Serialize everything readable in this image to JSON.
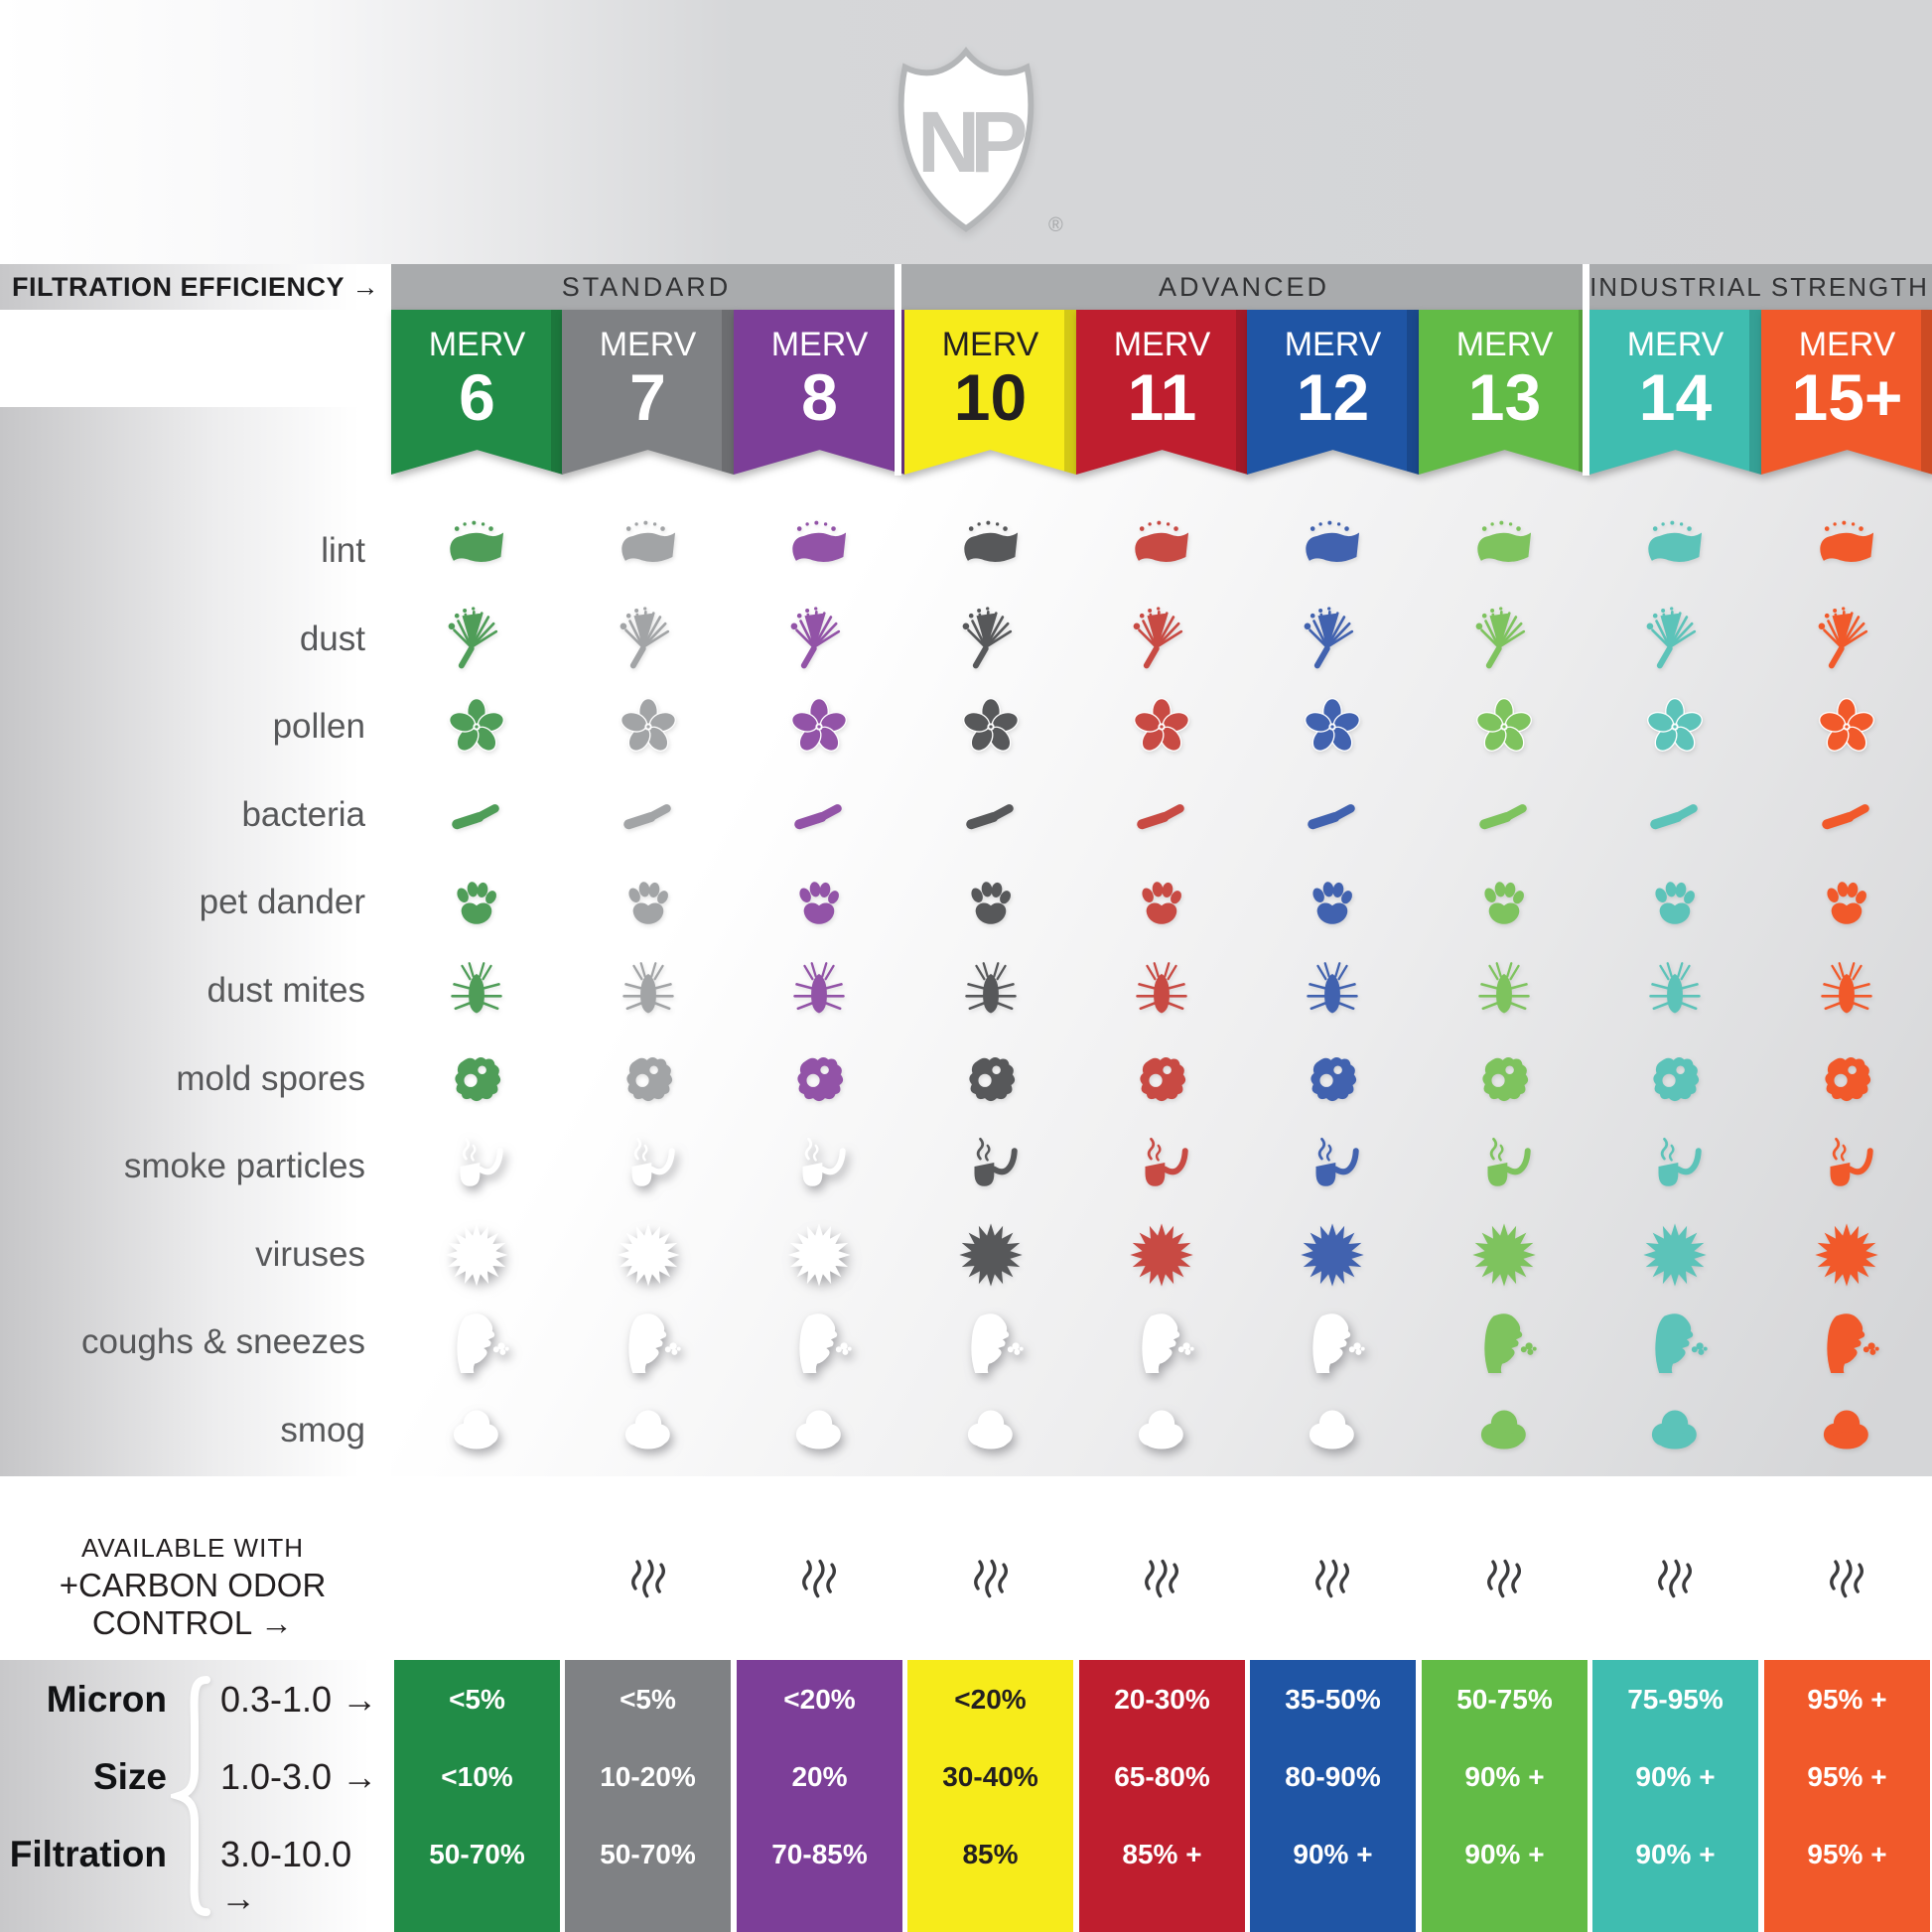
{
  "logo": {
    "letters": "NP",
    "registered_mark": "®"
  },
  "header": {
    "efficiency_label": "FILTRATION EFFICIENCY →",
    "groups": [
      {
        "label": "STANDARD"
      },
      {
        "label": "ADVANCED"
      },
      {
        "label": "INDUSTRIAL STRENGTH"
      }
    ]
  },
  "columns": [
    {
      "merv_word": "MERV",
      "number": "6",
      "group": "STANDARD",
      "ribbon_color": "#218c47",
      "icon_color": "#4f9d58",
      "ribbon_text_color": "#ffffff",
      "carbon_odor_control": false,
      "table_values": [
        "<5%",
        "<10%",
        "50-70%"
      ],
      "table_text_color": "#ffffff"
    },
    {
      "merv_word": "MERV",
      "number": "7",
      "group": "STANDARD",
      "ribbon_color": "#7f8184",
      "icon_color": "#a2a4a6",
      "ribbon_text_color": "#ffffff",
      "carbon_odor_control": true,
      "table_values": [
        "<5%",
        "10-20%",
        "50-70%"
      ],
      "table_text_color": "#ffffff"
    },
    {
      "merv_word": "MERV",
      "number": "8",
      "group": "STANDARD",
      "ribbon_color": "#7c3e98",
      "icon_color": "#9253a7",
      "ribbon_text_color": "#ffffff",
      "carbon_odor_control": true,
      "table_values": [
        "<20%",
        "20%",
        "70-85%"
      ],
      "table_text_color": "#ffffff"
    },
    {
      "merv_word": "MERV",
      "number": "10",
      "group": "ADVANCED",
      "ribbon_color": "#f7ec1a",
      "icon_color": "#57585a",
      "ribbon_text_color": "#231f20",
      "carbon_odor_control": true,
      "table_values": [
        "<20%",
        "30-40%",
        "85%"
      ],
      "table_text_color": "#231f20"
    },
    {
      "merv_word": "MERV",
      "number": "11",
      "group": "ADVANCED",
      "ribbon_color": "#bf1e2e",
      "icon_color": "#c84a43",
      "ribbon_text_color": "#ffffff",
      "carbon_odor_control": true,
      "table_values": [
        "20-30%",
        "65-80%",
        "85% +"
      ],
      "table_text_color": "#ffffff"
    },
    {
      "merv_word": "MERV",
      "number": "12",
      "group": "ADVANCED",
      "ribbon_color": "#1f55a5",
      "icon_color": "#4162af",
      "ribbon_text_color": "#ffffff",
      "carbon_odor_control": true,
      "table_values": [
        "35-50%",
        "80-90%",
        "90% +"
      ],
      "table_text_color": "#ffffff"
    },
    {
      "merv_word": "MERV",
      "number": "13",
      "group": "ADVANCED",
      "ribbon_color": "#62bb46",
      "icon_color": "#7ec35e",
      "ribbon_text_color": "#ffffff",
      "carbon_odor_control": true,
      "table_values": [
        "50-75%",
        "90% +",
        "90% +"
      ],
      "table_text_color": "#ffffff"
    },
    {
      "merv_word": "MERV",
      "number": "14",
      "group": "INDUSTRIAL STRENGTH",
      "ribbon_color": "#3fbdb0",
      "icon_color": "#5cc3b9",
      "ribbon_text_color": "#ffffff",
      "carbon_odor_control": true,
      "table_values": [
        "75-95%",
        "90% +",
        "90% +"
      ],
      "table_text_color": "#ffffff"
    },
    {
      "merv_word": "MERV",
      "number": "15+",
      "group": "INDUSTRIAL STRENGTH",
      "ribbon_color": "#f1592a",
      "icon_color": "#f1592a",
      "ribbon_text_color": "#ffffff",
      "carbon_odor_control": true,
      "table_values": [
        "95% +",
        "95% +",
        "95% +"
      ],
      "table_text_color": "#ffffff"
    }
  ],
  "rows": [
    {
      "label": "lint",
      "icon": "lint-icon",
      "colored_from_column": 0
    },
    {
      "label": "dust",
      "icon": "dust-icon",
      "colored_from_column": 0
    },
    {
      "label": "pollen",
      "icon": "pollen-icon",
      "colored_from_column": 0
    },
    {
      "label": "bacteria",
      "icon": "bacteria-icon",
      "colored_from_column": 0
    },
    {
      "label": "pet dander",
      "icon": "paw-icon",
      "colored_from_column": 0
    },
    {
      "label": "dust mites",
      "icon": "dust-mite-icon",
      "colored_from_column": 0
    },
    {
      "label": "mold spores",
      "icon": "mold-spores-icon",
      "colored_from_column": 0
    },
    {
      "label": "smoke particles",
      "icon": "pipe-icon",
      "colored_from_column": 3
    },
    {
      "label": "viruses",
      "icon": "virus-icon",
      "colored_from_column": 3
    },
    {
      "label": "coughs & sneezes",
      "icon": "cough-icon",
      "colored_from_column": 6
    },
    {
      "label": "smog",
      "icon": "smog-cloud-icon",
      "colored_from_column": 6
    }
  ],
  "carbon_row": {
    "line1": "AVAILABLE WITH",
    "line2": "+CARBON ODOR CONTROL →",
    "steam_icon": "steam-icon",
    "inactive_icon_color": "#ffffff"
  },
  "micron_table": {
    "labels": [
      "Micron",
      "Size",
      "Filtration"
    ],
    "ranges": [
      "0.3-1.0  →",
      "1.0-3.0  →",
      "3.0-10.0  →"
    ]
  },
  "chart_data": {
    "type": "table",
    "title": "FILTRATION EFFICIENCY",
    "columns": [
      "MERV 6",
      "MERV 7",
      "MERV 8",
      "MERV 10",
      "MERV 11",
      "MERV 12",
      "MERV 13",
      "MERV 14",
      "MERV 15+"
    ],
    "column_groups": {
      "STANDARD": [
        "MERV 6",
        "MERV 7",
        "MERV 8"
      ],
      "ADVANCED": [
        "MERV 10",
        "MERV 11",
        "MERV 12",
        "MERV 13"
      ],
      "INDUSTRIAL STRENGTH": [
        "MERV 14",
        "MERV 15+"
      ]
    },
    "contaminants_captured_from": {
      "lint": "MERV 6",
      "dust": "MERV 6",
      "pollen": "MERV 6",
      "bacteria": "MERV 6",
      "pet dander": "MERV 6",
      "dust mites": "MERV 6",
      "mold spores": "MERV 6",
      "smoke particles": "MERV 10",
      "viruses": "MERV 10",
      "coughs & sneezes": "MERV 13",
      "smog": "MERV 13"
    },
    "carbon_odor_control_available": [
      "MERV 7",
      "MERV 8",
      "MERV 10",
      "MERV 11",
      "MERV 12",
      "MERV 13",
      "MERV 14",
      "MERV 15+"
    ],
    "micron_size_filtration_rows": [
      "0.3-1.0",
      "1.0-3.0",
      "3.0-10.0"
    ],
    "micron_size_filtration": {
      "MERV 6": [
        "<5%",
        "<10%",
        "50-70%"
      ],
      "MERV 7": [
        "<5%",
        "10-20%",
        "50-70%"
      ],
      "MERV 8": [
        "<20%",
        "20%",
        "70-85%"
      ],
      "MERV 10": [
        "<20%",
        "30-40%",
        "85%"
      ],
      "MERV 11": [
        "20-30%",
        "65-80%",
        "85% +"
      ],
      "MERV 12": [
        "35-50%",
        "80-90%",
        "90% +"
      ],
      "MERV 13": [
        "50-75%",
        "90% +",
        "90% +"
      ],
      "MERV 14": [
        "75-95%",
        "90% +",
        "90% +"
      ],
      "MERV 15+": [
        "95% +",
        "95% +",
        "95% +"
      ]
    }
  }
}
